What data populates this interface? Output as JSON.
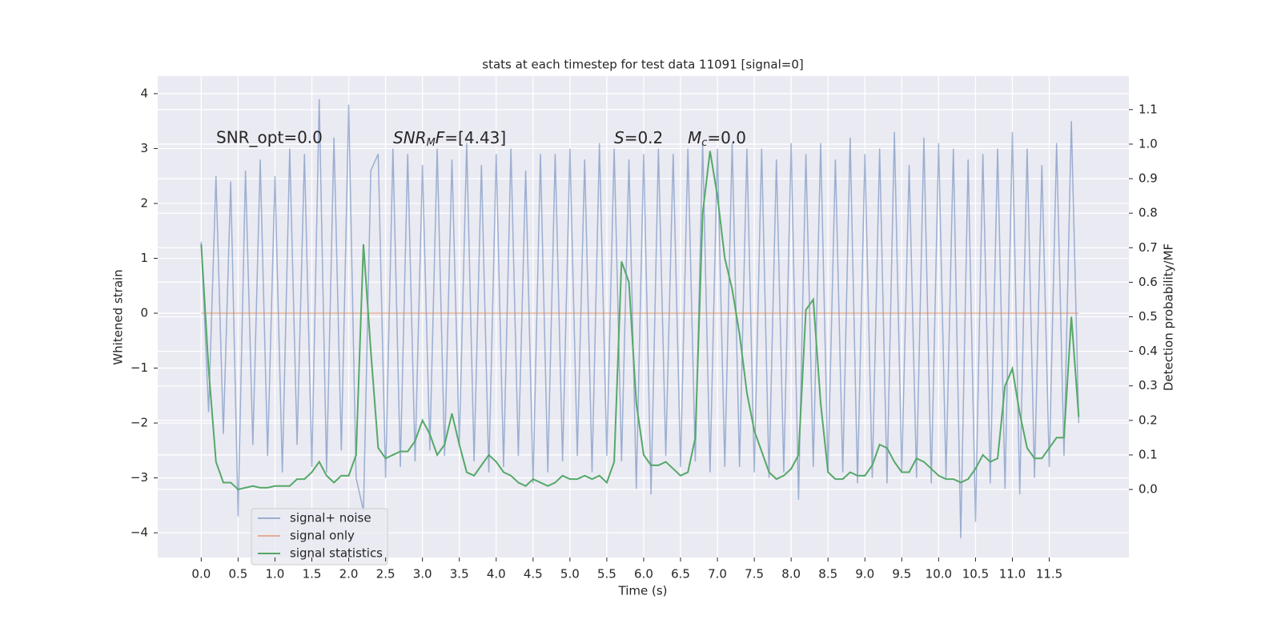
{
  "chart_data": {
    "type": "line",
    "title": "stats at each timestep for test data 11091 [signal=0]",
    "xlabel": "Time (s)",
    "ylabel": "Whitened strain",
    "y2label": "Detection probability/MF",
    "annotations": [
      [
        "SNR_opt=0.0"
      ],
      [
        "SNR",
        "M",
        "F",
        "=[4.43]"
      ],
      [
        "S",
        "=0.2"
      ],
      [
        "M",
        "c",
        "=0.0"
      ]
    ],
    "x": [
      0,
      0.1,
      0.2,
      0.3,
      0.4,
      0.5,
      0.6,
      0.7,
      0.8,
      0.9,
      1,
      1.1,
      1.2,
      1.3,
      1.4,
      1.5,
      1.6,
      1.7,
      1.8,
      1.9,
      2,
      2.1,
      2.2,
      2.3,
      2.4,
      2.5,
      2.6,
      2.7,
      2.8,
      2.9,
      3,
      3.1,
      3.2,
      3.3,
      3.4,
      3.5,
      3.6,
      3.7,
      3.8,
      3.9,
      4,
      4.1,
      4.2,
      4.3,
      4.4,
      4.5,
      4.6,
      4.7,
      4.8,
      4.9,
      5,
      5.1,
      5.2,
      5.3,
      5.4,
      5.5,
      5.6,
      5.7,
      5.8,
      5.9,
      6,
      6.1,
      6.2,
      6.3,
      6.4,
      6.5,
      6.6,
      6.7,
      6.8,
      6.9,
      7,
      7.1,
      7.2,
      7.3,
      7.4,
      7.5,
      7.6,
      7.7,
      7.8,
      7.9,
      8,
      8.1,
      8.2,
      8.3,
      8.4,
      8.5,
      8.6,
      8.7,
      8.8,
      8.9,
      9,
      9.1,
      9.2,
      9.3,
      9.4,
      9.5,
      9.6,
      9.7,
      9.8,
      9.9,
      10,
      10.1,
      10.2,
      10.3,
      10.4,
      10.5,
      10.6,
      10.7,
      10.8,
      10.9,
      11,
      11.1,
      11.2,
      11.3,
      11.4,
      11.5,
      11.6,
      11.7,
      11.8,
      11.9
    ],
    "series": [
      {
        "name": "signal+ noise",
        "color": "#4c72b0",
        "alpha": 0.5,
        "values": [
          1.3,
          -1.8,
          2.5,
          -2.2,
          2.4,
          -3.7,
          2.6,
          -2.4,
          2.8,
          -2.6,
          2.5,
          -2.9,
          3.0,
          -2.4,
          2.9,
          -2.8,
          3.9,
          -2.9,
          3.2,
          -2.5,
          3.8,
          -3.0,
          -3.6,
          2.6,
          2.9,
          -3.0,
          3.0,
          -2.8,
          2.9,
          -2.7,
          2.7,
          -2.5,
          3.0,
          -2.6,
          2.8,
          -2.4,
          3.1,
          -2.7,
          2.7,
          -2.9,
          2.9,
          -2.8,
          3.0,
          -2.6,
          2.6,
          -3.1,
          2.9,
          -2.9,
          2.9,
          -2.7,
          3.0,
          -2.6,
          2.8,
          -2.9,
          3.1,
          -2.6,
          3.0,
          -2.7,
          2.8,
          -3.2,
          2.9,
          -3.3,
          3.0,
          -2.6,
          2.9,
          -2.8,
          3.0,
          -2.7,
          3.1,
          -2.9,
          3.0,
          -2.8,
          3.1,
          -2.8,
          3.0,
          -2.9,
          3.0,
          -3.0,
          2.8,
          -2.9,
          3.1,
          -3.4,
          2.9,
          -2.8,
          3.1,
          -2.9,
          2.8,
          -2.9,
          3.2,
          -3.1,
          2.9,
          -3.0,
          3.0,
          -3.1,
          3.3,
          -2.9,
          2.7,
          -3.0,
          3.2,
          -3.1,
          3.1,
          -3.0,
          3.0,
          -4.1,
          2.8,
          -3.8,
          2.9,
          -3.1,
          3.0,
          -3.2,
          3.3,
          -3.3,
          3.0,
          -3.0,
          2.7,
          -2.8,
          3.1,
          -2.6,
          3.5,
          -2.0
        ]
      },
      {
        "name": "signal only",
        "color": "#dd8452",
        "alpha": 0.6,
        "x": [
          0,
          11.9
        ],
        "values": [
          0,
          0
        ]
      },
      {
        "name": "signal statistics",
        "color": "#55a868",
        "alpha": 1,
        "axis": "y2",
        "values": [
          0.71,
          0.35,
          0.08,
          0.02,
          0.02,
          0.0,
          0.005,
          0.01,
          0.005,
          0.005,
          0.01,
          0.01,
          0.01,
          0.03,
          0.03,
          0.05,
          0.08,
          0.04,
          0.02,
          0.04,
          0.04,
          0.1,
          0.71,
          0.4,
          0.12,
          0.09,
          0.1,
          0.11,
          0.11,
          0.14,
          0.2,
          0.16,
          0.1,
          0.13,
          0.22,
          0.13,
          0.05,
          0.04,
          0.07,
          0.1,
          0.08,
          0.05,
          0.04,
          0.02,
          0.01,
          0.03,
          0.02,
          0.01,
          0.02,
          0.04,
          0.03,
          0.03,
          0.04,
          0.03,
          0.04,
          0.02,
          0.08,
          0.66,
          0.6,
          0.25,
          0.1,
          0.07,
          0.07,
          0.08,
          0.06,
          0.04,
          0.05,
          0.15,
          0.8,
          0.98,
          0.85,
          0.67,
          0.58,
          0.45,
          0.28,
          0.17,
          0.11,
          0.05,
          0.03,
          0.04,
          0.06,
          0.1,
          0.52,
          0.55,
          0.25,
          0.05,
          0.03,
          0.03,
          0.05,
          0.04,
          0.04,
          0.07,
          0.13,
          0.12,
          0.08,
          0.05,
          0.05,
          0.09,
          0.08,
          0.06,
          0.04,
          0.03,
          0.03,
          0.02,
          0.03,
          0.06,
          0.1,
          0.08,
          0.09,
          0.3,
          0.35,
          0.22,
          0.12,
          0.09,
          0.09,
          0.12,
          0.15,
          0.15,
          0.5,
          0.21
        ]
      }
    ],
    "xlim": [
      -0.59,
      12.58
    ],
    "xticks": [
      {
        "value": 0,
        "label": "0.0"
      },
      0.5,
      {
        "value": 1,
        "label": "1.0"
      },
      1.5,
      {
        "value": 2,
        "label": "2.0"
      },
      2.5,
      {
        "value": 3,
        "label": "3.0"
      },
      3.5,
      {
        "value": 4,
        "label": "4.0"
      },
      4.5,
      {
        "value": 5,
        "label": "5.0"
      },
      5.5,
      {
        "value": 6,
        "label": "6.0"
      },
      6.5,
      {
        "value": 7,
        "label": "7.0"
      },
      7.5,
      {
        "value": 8,
        "label": "8.0"
      },
      8.5,
      {
        "value": 9,
        "label": "9.0"
      },
      9.5,
      {
        "value": 10,
        "label": "10.0"
      },
      10.5,
      {
        "value": 11,
        "label": "11.0"
      },
      11.5
    ],
    "ylim": [
      -4.45,
      4.32
    ],
    "yticks": [
      {
        "value": -4,
        "label": "−4"
      },
      {
        "value": -3,
        "label": "−3"
      },
      {
        "value": -2,
        "label": "−2"
      },
      {
        "value": -1,
        "label": "−1"
      },
      0,
      1,
      2,
      3,
      4
    ],
    "y2lim": [
      -0.197,
      1.197
    ],
    "y2ticks": [
      {
        "value": 0,
        "label": "0.0"
      },
      0.1,
      0.2,
      0.3,
      0.4,
      0.5,
      0.6,
      0.7,
      0.8,
      0.9,
      {
        "value": 1,
        "label": "1.0"
      },
      1.1
    ],
    "grid": true,
    "legend": "lower left"
  }
}
